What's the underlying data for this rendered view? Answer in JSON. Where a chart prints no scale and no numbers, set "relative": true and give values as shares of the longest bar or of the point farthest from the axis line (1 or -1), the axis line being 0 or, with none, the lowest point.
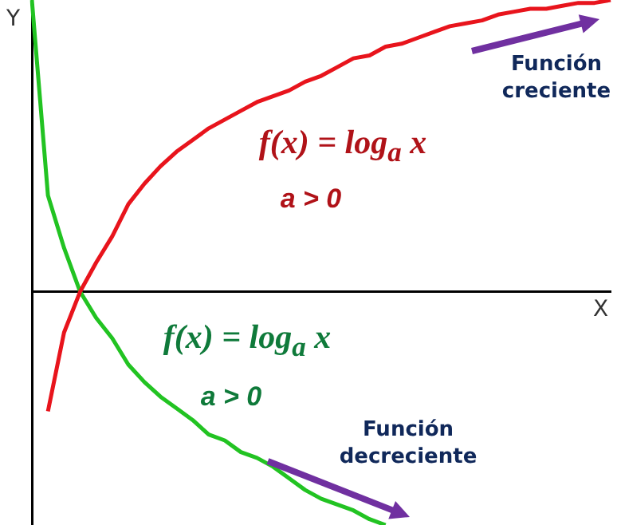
{
  "chart_data": {
    "type": "line",
    "relative": true,
    "xlabel": "X",
    "ylabel": "Y",
    "grid": false,
    "marker": "none",
    "categories": [
      null,
      null,
      null,
      null,
      null,
      null,
      null,
      null,
      null,
      null,
      null,
      null,
      null,
      null,
      null,
      null,
      null,
      null,
      null,
      null,
      null,
      null,
      null,
      null,
      null,
      null,
      null,
      null,
      null,
      null,
      null,
      null,
      null,
      null,
      null,
      null,
      null
    ],
    "series": [
      {
        "color": "#e8141c",
        "values": [
          null,
          -0.41,
          -0.14,
          0,
          0.1,
          0.19,
          0.3,
          0.37,
          0.43,
          0.48,
          0.52,
          0.56,
          0.59,
          0.62,
          0.65,
          0.67,
          0.69,
          0.72,
          0.74,
          0.77,
          0.8,
          0.81,
          0.84,
          0.85,
          0.87,
          0.89,
          0.91,
          0.92,
          0.93,
          0.95,
          0.96,
          0.97,
          0.97,
          0.98,
          0.99,
          0.99,
          1.0
        ]
      },
      {
        "color": "#22c322",
        "values": [
          1.0,
          0.33,
          0.15,
          0,
          -0.09,
          -0.16,
          -0.25,
          -0.31,
          -0.36,
          -0.4,
          -0.44,
          -0.49,
          -0.51,
          -0.55,
          -0.57,
          -0.6,
          -0.64,
          -0.68,
          -0.71,
          -0.73,
          -0.75,
          -0.78,
          -0.8,
          null,
          null,
          null,
          null,
          null,
          null,
          null,
          null,
          null,
          null,
          null,
          null,
          null,
          null
        ]
      }
    ],
    "annotations": [
      "f(x) = log$_{a}$ x",
      "a > 0",
      "f(x) = log$_{a}$ x",
      "a > 0",
      "Función creciente",
      "Función decreciente"
    ]
  }
}
